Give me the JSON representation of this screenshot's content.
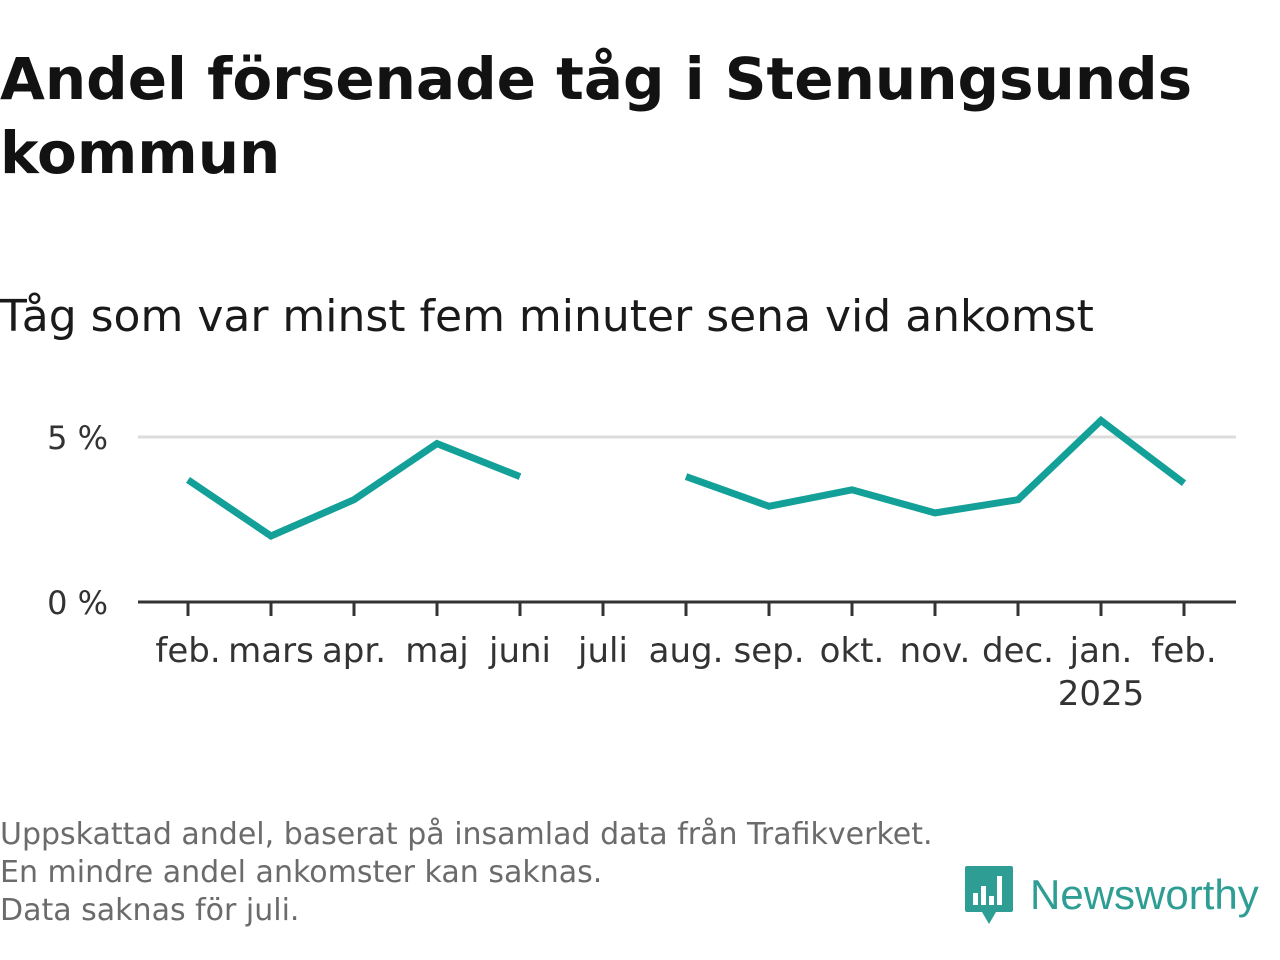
{
  "header": {
    "title": "Andel försenade tåg i Stenungsunds kommun",
    "subtitle": "Tåg som var minst fem minuter sena vid ankomst"
  },
  "footnote": {
    "line1": "Uppskattad andel, baserat på insamlad data från Trafikverket. En mindre andel ankomster kan saknas.",
    "line2": "Data saknas för juli."
  },
  "brand": {
    "name": "Newsworthy",
    "icon": "newsworthy-logo-icon",
    "color": "#2e9e94"
  },
  "chart_data": {
    "type": "line",
    "title": "Andel försenade tåg i Stenungsunds kommun",
    "subtitle": "Tåg som var minst fem minuter sena vid ankomst",
    "xlabel": "",
    "ylabel": "",
    "categories": [
      "feb.",
      "mars",
      "apr.",
      "maj",
      "juni",
      "juli",
      "aug.",
      "sep.",
      "okt.",
      "nov.",
      "dec.",
      "jan.",
      "feb."
    ],
    "year_label": {
      "index": 11,
      "text": "2025"
    },
    "series": [
      {
        "values": [
          3.7,
          2.0,
          3.1,
          4.8,
          3.8,
          null,
          3.8,
          2.9,
          3.4,
          2.7,
          3.1,
          5.5,
          3.6
        ],
        "color": "#13a098"
      }
    ],
    "yticks": [
      0,
      5
    ],
    "ytick_labels": [
      "0 %",
      "5 %"
    ],
    "ylim": [
      0,
      5
    ],
    "grid": true,
    "legend": "none",
    "missing": "juli"
  }
}
